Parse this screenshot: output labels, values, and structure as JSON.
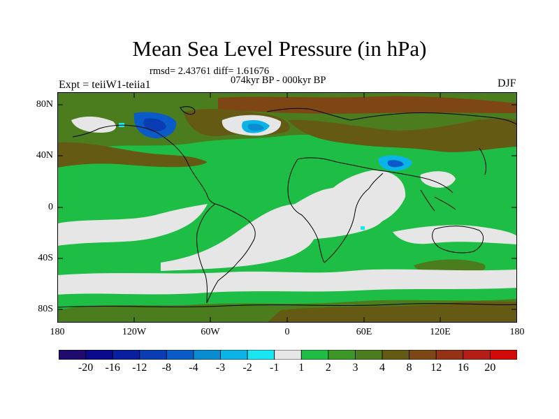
{
  "title": "Mean Sea Level Pressure (in hPa)",
  "stats": "rmsd= 2.43761  diff= 1.61676",
  "period": "074kyr BP - 000kyr BP",
  "experiment": "Expt = teiiW1-teiia1",
  "season": "DJF",
  "map": {
    "projection": "cylindrical-equidistant",
    "lon_range": [
      -180,
      180
    ],
    "lat_range": [
      -90,
      90
    ],
    "y_ticks": [
      "80N",
      "40N",
      "0",
      "40S",
      "80S"
    ],
    "x_ticks": [
      "180",
      "120W",
      "60W",
      "0",
      "60E",
      "120E",
      "180"
    ],
    "coastline_color": "#000000"
  },
  "colorbar": {
    "colors": [
      "#1f0a6e",
      "#0a0a8c",
      "#0a1ea0",
      "#0a3cb4",
      "#0a5ac8",
      "#0a8cd2",
      "#0ab4e6",
      "#19e6f0",
      "#e6e6e6",
      "#1ebe46",
      "#3c9628",
      "#4b7d1e",
      "#645a14",
      "#7d4614",
      "#963214",
      "#b41e14",
      "#d20a0a"
    ],
    "labels": [
      "-20",
      "-16",
      "-12",
      "-8",
      "-4",
      "-3",
      "-2",
      "-1",
      "1",
      "2",
      "3",
      "4",
      "8",
      "12",
      "16",
      "20"
    ]
  }
}
